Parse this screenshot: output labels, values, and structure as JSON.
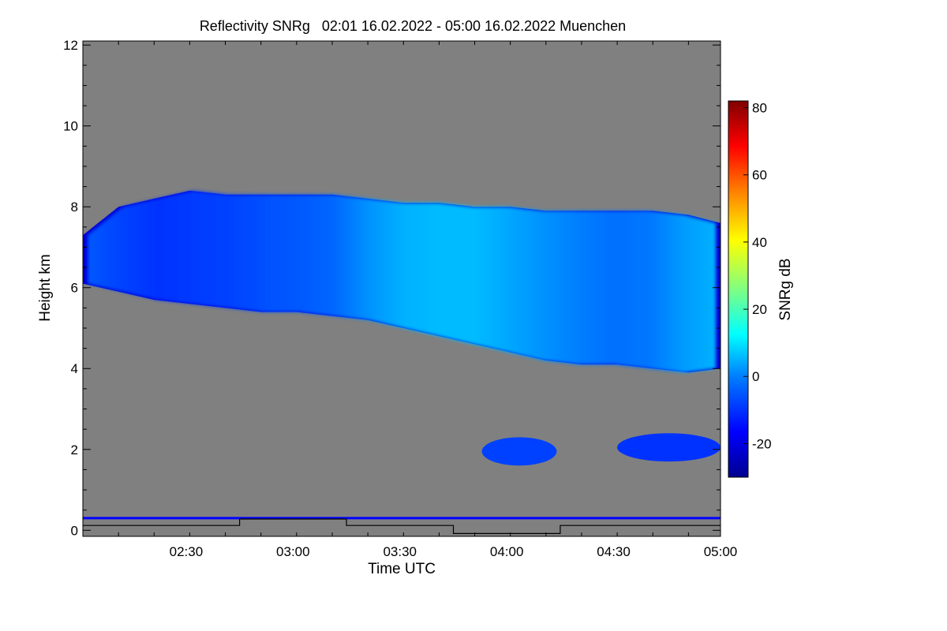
{
  "chart_data": {
    "type": "heatmap",
    "title": "Reflectivity SNRg   02:01 16.02.2022 - 05:00 16.02.2022 Muenchen",
    "xlabel": "Time UTC",
    "ylabel": "Height km",
    "colorbar_label": "SNRg dB",
    "x_ticks": [
      "02:30",
      "03:00",
      "03:30",
      "04:00",
      "04:30",
      "05:00"
    ],
    "x_tick_minutes": [
      29,
      59,
      89,
      119,
      149,
      179
    ],
    "x_range_minutes": [
      0,
      179
    ],
    "y_ticks": [
      0,
      2,
      4,
      6,
      8,
      10,
      12
    ],
    "ylim": [
      -0.15,
      12.1
    ],
    "colorbar_ticks": [
      -20,
      0,
      20,
      40,
      60,
      80
    ],
    "colorbar_range": [
      -30,
      82
    ],
    "colorscale": [
      "#00008f",
      "#0000ff",
      "#0080ff",
      "#00ffff",
      "#80ff80",
      "#ffff00",
      "#ff8000",
      "#ff0000",
      "#800000"
    ],
    "background_color": "#808080",
    "cloud_layer": {
      "minutes": [
        0,
        10,
        20,
        30,
        40,
        50,
        60,
        70,
        80,
        90,
        100,
        110,
        120,
        130,
        140,
        150,
        160,
        170,
        179
      ],
      "top_km": [
        7.3,
        8.0,
        8.2,
        8.4,
        8.3,
        8.3,
        8.3,
        8.3,
        8.2,
        8.1,
        8.1,
        8.0,
        8.0,
        7.9,
        7.9,
        7.9,
        7.9,
        7.8,
        7.6
      ],
      "base_km": [
        6.1,
        5.9,
        5.7,
        5.6,
        5.5,
        5.4,
        5.4,
        5.3,
        5.2,
        5.0,
        4.8,
        4.6,
        4.4,
        4.2,
        4.1,
        4.1,
        4.0,
        3.9,
        4.0
      ],
      "core_snr_db": [
        -5,
        -8,
        -10,
        -9,
        -8,
        -6,
        -5,
        -3,
        2,
        5,
        6,
        6,
        4,
        2,
        0,
        -2,
        -1,
        3,
        5
      ]
    },
    "lower_patches": [
      {
        "start_min": 112,
        "end_min": 133,
        "base_km": 1.6,
        "top_km": 2.3,
        "snr_db": -8
      },
      {
        "start_min": 150,
        "end_min": 179,
        "base_km": 1.7,
        "top_km": 2.4,
        "snr_db": -10
      }
    ],
    "surface_line_km": 0.3,
    "status_line": {
      "minutes": [
        0,
        44,
        44,
        74,
        74,
        104,
        104,
        134,
        134,
        179
      ],
      "level_km": [
        0.12,
        0.12,
        0.28,
        0.28,
        0.12,
        0.12,
        -0.08,
        -0.08,
        0.12,
        0.12
      ]
    }
  }
}
